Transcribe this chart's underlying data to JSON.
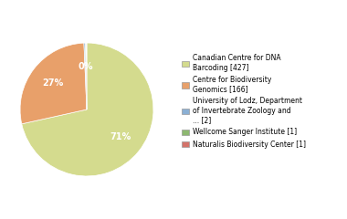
{
  "legend_labels": [
    "Canadian Centre for DNA\nBarcoding [427]",
    "Centre for Biodiversity\nGenomics [166]",
    "University of Lodz, Department\nof Invertebrate Zoology and\n... [2]",
    "Wellcome Sanger Institute [1]",
    "Naturalis Biodiversity Center [1]"
  ],
  "values": [
    427,
    166,
    2,
    1,
    1
  ],
  "colors": [
    "#d4db8e",
    "#e8a06a",
    "#8bb0d4",
    "#8db870",
    "#d4736a"
  ],
  "pct_labels": [
    "71%",
    "27%",
    "0%",
    "",
    ""
  ],
  "background_color": "#ffffff",
  "startangle": 90
}
